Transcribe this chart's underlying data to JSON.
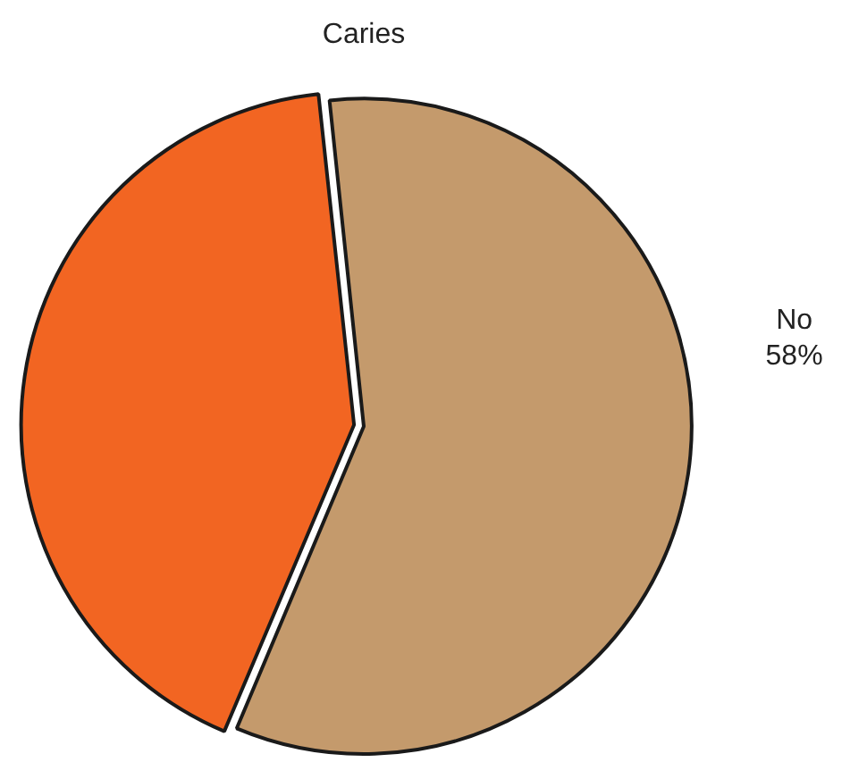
{
  "chart_data": {
    "type": "pie",
    "title": "Caries",
    "categories": [
      "No",
      null
    ],
    "values": [
      58,
      42
    ],
    "value_labels": [
      "58%",
      null
    ],
    "colors": [
      "#c49a6c",
      "#f26522"
    ],
    "legend": false
  }
}
